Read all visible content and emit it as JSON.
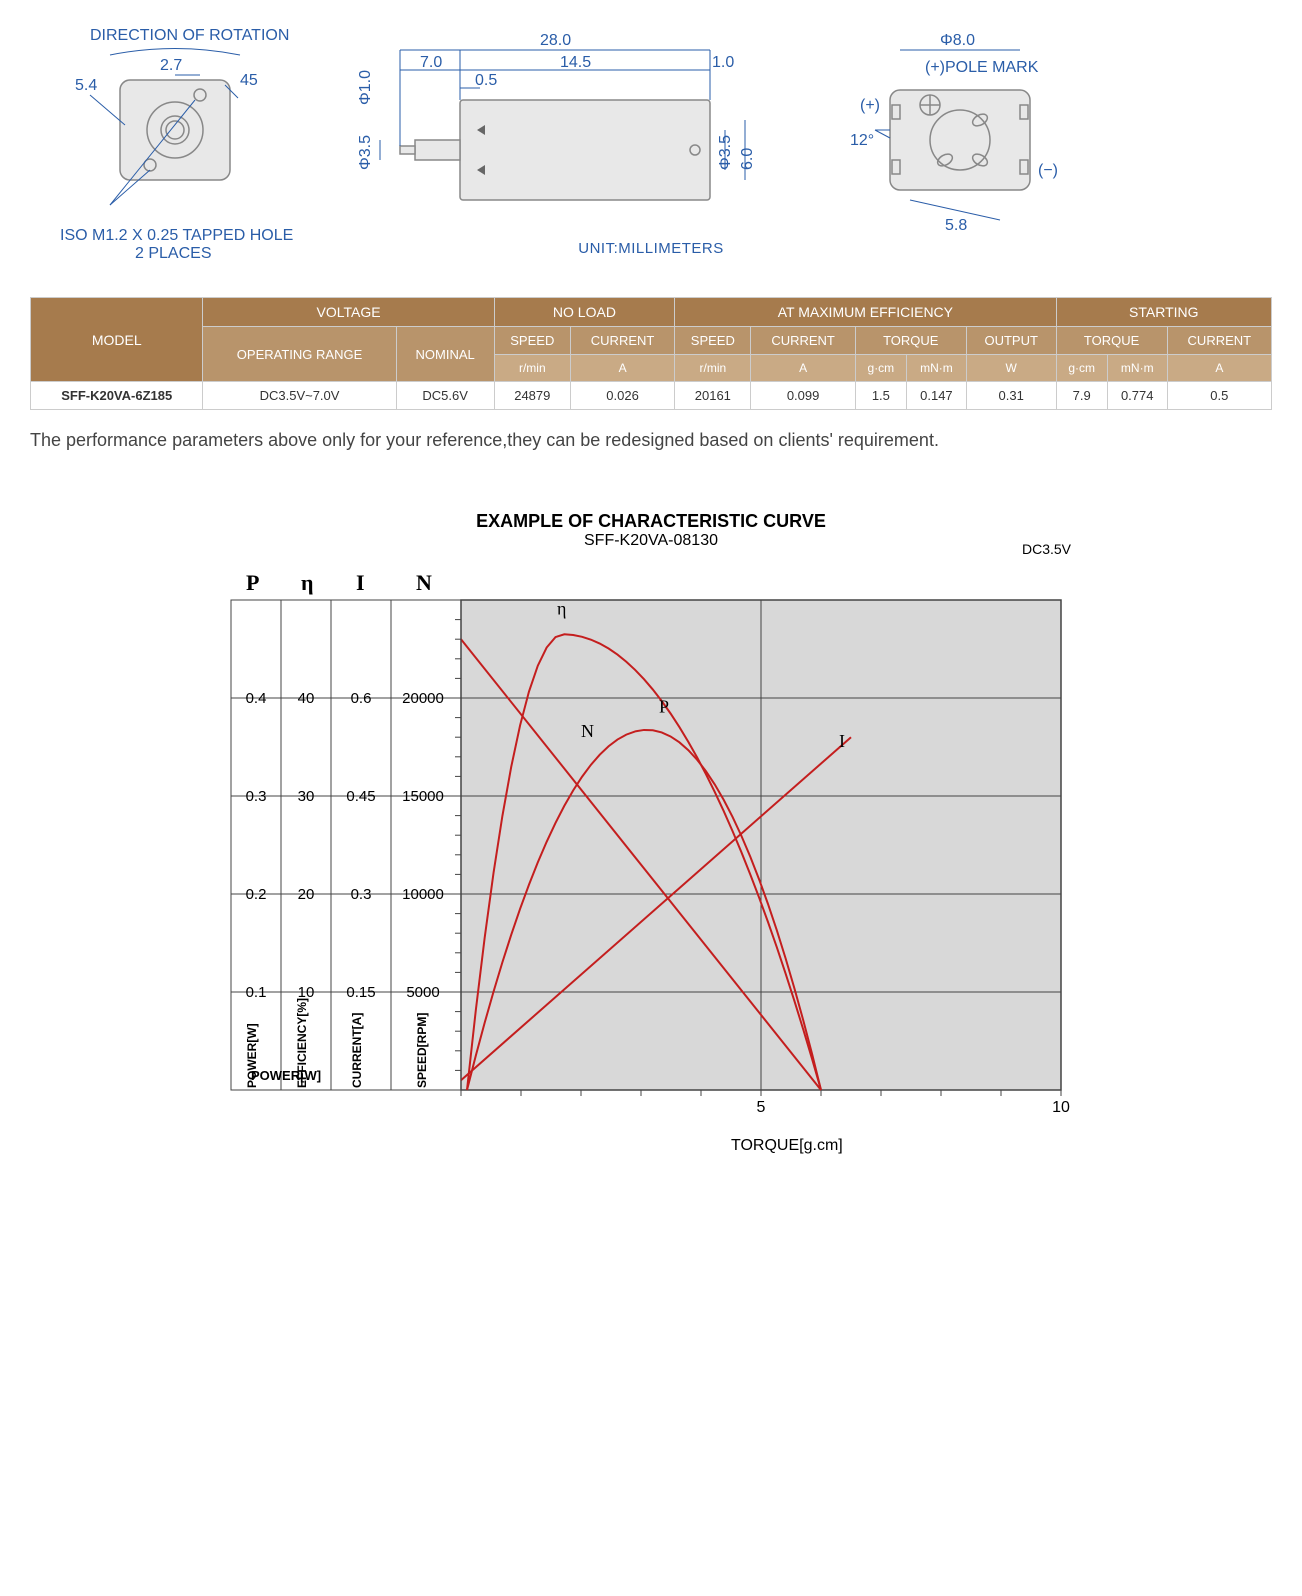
{
  "diagram": {
    "rotation_label": "DIRECTION OF ROTATION",
    "tapped_hole_label": "ISO M1.2 X 0.25 TAPPED HOLE",
    "tapped_hole_places": "2 PLACES",
    "unit_label": "UNIT:MILLIMETERS",
    "pole_mark_label": "(+)POLE MARK",
    "plus": "(+)",
    "minus": "(−)",
    "dimensions": {
      "front_5_4": "5.4",
      "front_2_7": "2.7",
      "front_45": "45",
      "side_28": "28.0",
      "side_7": "7.0",
      "side_14_5": "14.5",
      "side_1": "1.0",
      "side_0_5": "0.5",
      "side_d1": "Φ1.0",
      "side_d3_5a": "Φ3.5",
      "side_d3_5b": "Φ3.5",
      "side_6": "6.0",
      "rear_d8": "Φ8.0",
      "rear_12": "12°",
      "rear_5_8": "5.8"
    },
    "colors": {
      "dim": "#2a5da8",
      "part_stroke": "#888888",
      "part_fill": "#e8e8e8"
    }
  },
  "table": {
    "headers_top": {
      "model": "MODEL",
      "voltage": "VOLTAGE",
      "noload": "NO LOAD",
      "maxeff": "AT MAXIMUM EFFICIENCY",
      "starting": "STARTING"
    },
    "headers_mid": {
      "op_range": "OPERATING RANGE",
      "nominal": "NOMINAL",
      "speed": "SPEED",
      "current": "CURRENT",
      "torque": "TORQUE",
      "output": "OUTPUT"
    },
    "units": {
      "rpm": "r/min",
      "amp": "A",
      "gcm": "g·cm",
      "mnm": "mN·m",
      "watt": "W"
    },
    "row": {
      "model": "SFF-K20VA-6Z185",
      "op_range": "DC3.5V~7.0V",
      "nominal": "DC5.6V",
      "nl_speed": "24879",
      "nl_current": "0.026",
      "me_speed": "20161",
      "me_current": "0.099",
      "me_torque_gcm": "1.5",
      "me_torque_mnm": "0.147",
      "me_output": "0.31",
      "st_torque_gcm": "7.9",
      "st_torque_mnm": "0.774",
      "st_current": "0.5"
    },
    "colors": {
      "hdr1": "#a67b4d",
      "hdr2": "#b8946b",
      "hdr3": "#c9aa85"
    }
  },
  "disclaimer": "The performance parameters above only for your reference,they can be redesigned based on clients' requirement.",
  "chart": {
    "title": "EXAMPLE OF CHARACTERISTIC CURVE",
    "subtitle": "SFF-K20VA-08130",
    "voltage": "DC3.5V",
    "axis_symbols": {
      "P": "P",
      "eta": "η",
      "I": "I",
      "N": "N"
    },
    "axis_labels": {
      "power": "POWER[W]",
      "eff": "EFFICIENCY[%]",
      "current": "CURRENT[A]",
      "speed": "SPEED[RPM]",
      "torque": "TORQUE[g.cm]"
    },
    "y_ticks": {
      "P": [
        "0.1",
        "0.2",
        "0.3",
        "0.4"
      ],
      "eta": [
        "10",
        "20",
        "30",
        "40"
      ],
      "I": [
        "0.15",
        "0.3",
        "0.45",
        "0.6"
      ],
      "N": [
        "5000",
        "10000",
        "15000",
        "20000"
      ]
    },
    "x_ticks": [
      "5",
      "10"
    ],
    "xlim": [
      0,
      10
    ],
    "ylim_frac": [
      0,
      1
    ],
    "curve_labels": {
      "eta": "η",
      "N": "N",
      "P": "P",
      "I": "I"
    },
    "colors": {
      "curve": "#c41e1e",
      "plot_bg": "#d8d8d8",
      "grid": "#444444",
      "bg": "#ffffff"
    },
    "curves": {
      "N_line": [
        [
          0,
          0.92
        ],
        [
          6,
          0
        ]
      ],
      "I_line": [
        [
          0,
          0.02
        ],
        [
          6.5,
          0.72
        ]
      ],
      "eta_para": {
        "peak_x": 1.7,
        "peak_y": 0.93,
        "end_x": 6,
        "start_x": 0.1
      },
      "P_para": {
        "peak_x": 3.1,
        "peak_y": 0.735,
        "end_x": 6,
        "start_x": 0.1
      }
    },
    "line_width": 2
  }
}
